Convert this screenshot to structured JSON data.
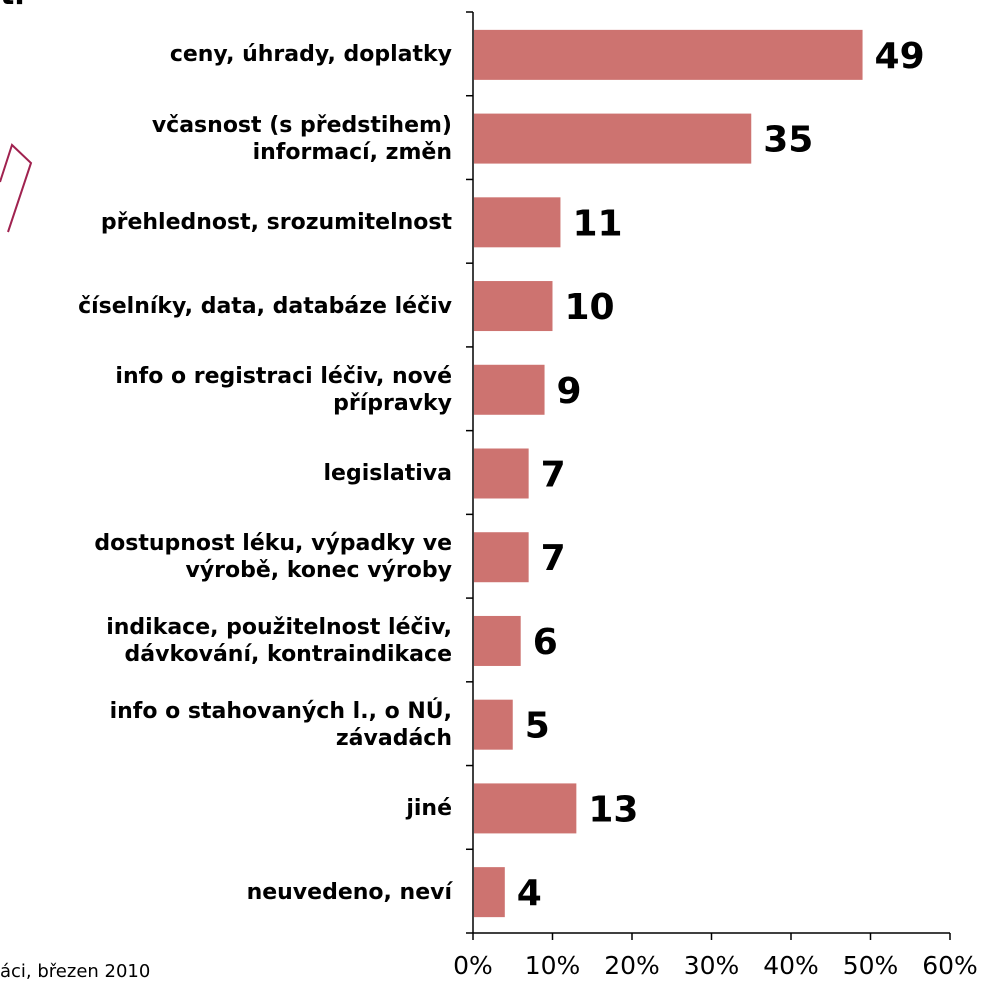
{
  "header_fragment": "ti",
  "footnote": "áci, březen 2010",
  "colors": {
    "bar": "#cd7370",
    "shape_stroke": "#a0224f",
    "axis": "#000000"
  },
  "chart_data": {
    "type": "bar",
    "orientation": "horizontal",
    "title": "",
    "xlabel": "",
    "ylabel": "",
    "categories": [
      "ceny, úhrady, doplatky",
      "včasnost (s předstihem) informací, změn",
      "přehlednost, srozumitelnost",
      "číselníky, data, databáze léčiv",
      "info o registraci léčiv, nové přípravky",
      "legislativa",
      "dostupnost léku, výpadky ve výrobě, konec výroby",
      "indikace, použitelnost léčiv, dávkování, kontraindikace",
      "info o stahovaných l., o NÚ, závadách",
      "jiné",
      "neuvedeno, neví"
    ],
    "label_lines": [
      [
        "ceny, úhrady, doplatky"
      ],
      [
        "včasnost (s předstihem)",
        "informací, změn"
      ],
      [
        "přehlednost, srozumitelnost"
      ],
      [
        "číselníky, data, databáze léčiv"
      ],
      [
        "info o registraci léčiv, nové",
        "přípravky"
      ],
      [
        "legislativa"
      ],
      [
        "dostupnost léku, výpadky ve",
        "výrobě, konec výroby"
      ],
      [
        "indikace, použitelnost léčiv,",
        "dávkování, kontraindikace"
      ],
      [
        "info o stahovaných l., o NÚ,",
        "závadách"
      ],
      [
        "jiné"
      ],
      [
        "neuvedeno, neví"
      ]
    ],
    "values": [
      49,
      35,
      11,
      10,
      9,
      7,
      7,
      6,
      5,
      13,
      4
    ],
    "data_labels": [
      "49",
      "35",
      "11",
      "10",
      "9",
      "7",
      "7",
      "6",
      "5",
      "13",
      "4"
    ],
    "xlim": [
      0,
      60
    ],
    "x_ticks": [
      0,
      10,
      20,
      30,
      40,
      50,
      60
    ],
    "x_tick_labels": [
      "0%",
      "10%",
      "20%",
      "30%",
      "40%",
      "50%",
      "60%"
    ],
    "grid": false,
    "legend": "none"
  }
}
